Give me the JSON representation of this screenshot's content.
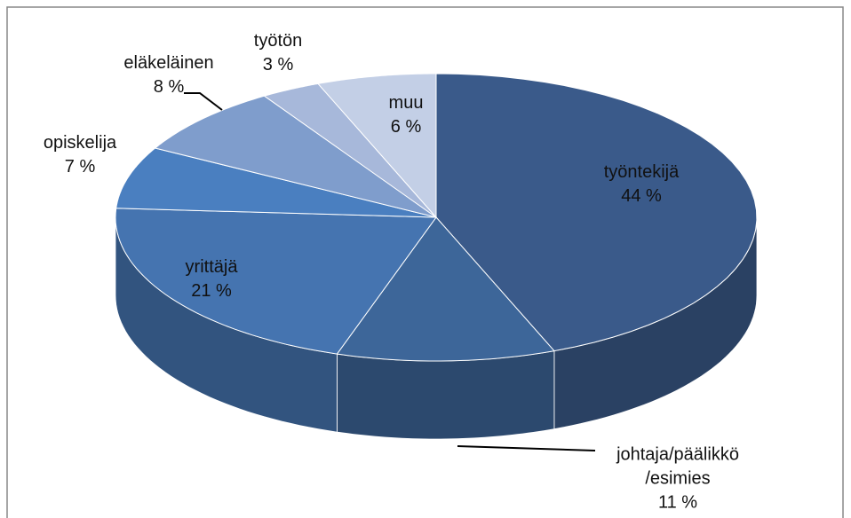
{
  "chart_data": {
    "type": "pie3d",
    "categories": [
      "työntekijä",
      "johtaja/päälikkö/esimies",
      "yrittäjä",
      "opiskelija",
      "eläkeläinen",
      "työtön",
      "muu"
    ],
    "values": [
      44,
      11,
      21,
      7,
      8,
      3,
      6
    ],
    "value_labels": [
      "44 %",
      "11 %",
      "21 %",
      "7 %",
      "8 %",
      "3 %",
      "6 %"
    ],
    "colors": [
      "#3a5a8a",
      "#3d6699",
      "#4574b0",
      "#4a7fc0",
      "#7f9dcc",
      "#a7b8da",
      "#c3cfe6"
    ]
  }
}
